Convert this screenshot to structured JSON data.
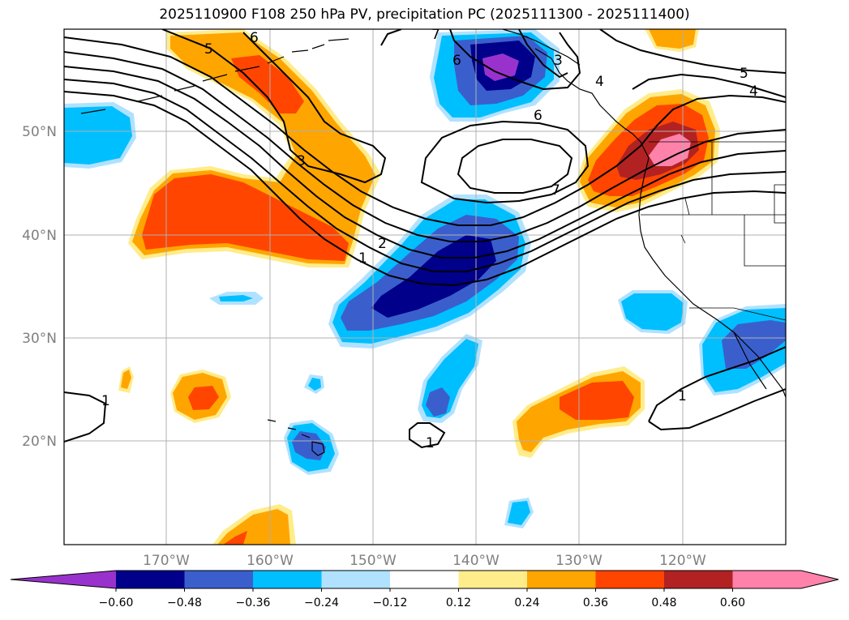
{
  "title": "2025110900 F108 250 hPa PV, precipitation PC (2025111300 - 2025111400)",
  "lat_labels": [
    "50°N",
    "40°N",
    "30°N",
    "20°N"
  ],
  "lon_labels": [
    "170°W",
    "160°W",
    "150°W",
    "140°W",
    "130°W",
    "120°W"
  ],
  "contour_labels": [
    "5",
    "6",
    "7",
    "3",
    "6",
    "4",
    "5",
    "4",
    "6",
    "3",
    "7",
    "2",
    "1",
    "1",
    "1",
    "1"
  ],
  "colorbar": {
    "ticks": [
      "−0.60",
      "−0.48",
      "−0.36",
      "−0.24",
      "−0.12",
      "0.12",
      "0.24",
      "0.36",
      "0.48",
      "0.60"
    ],
    "colors": [
      "#9932cc",
      "#00008b",
      "#3a5fcd",
      "#00bfff",
      "#b0e2ff",
      "#ffffff",
      "#ffec8b",
      "#ffa500",
      "#ff4500",
      "#b22222",
      "#ff82ab",
      "#ff82ab"
    ]
  },
  "colors": {
    "purple": "#9932cc",
    "navy": "#00008b",
    "blue": "#3a5fcd",
    "sky": "#00bfff",
    "lightblue": "#b0e2ff",
    "yellow": "#ffec8b",
    "orange": "#ffa500",
    "redorange": "#ff4500",
    "firebrick": "#b22222",
    "pink": "#ff82ab"
  }
}
